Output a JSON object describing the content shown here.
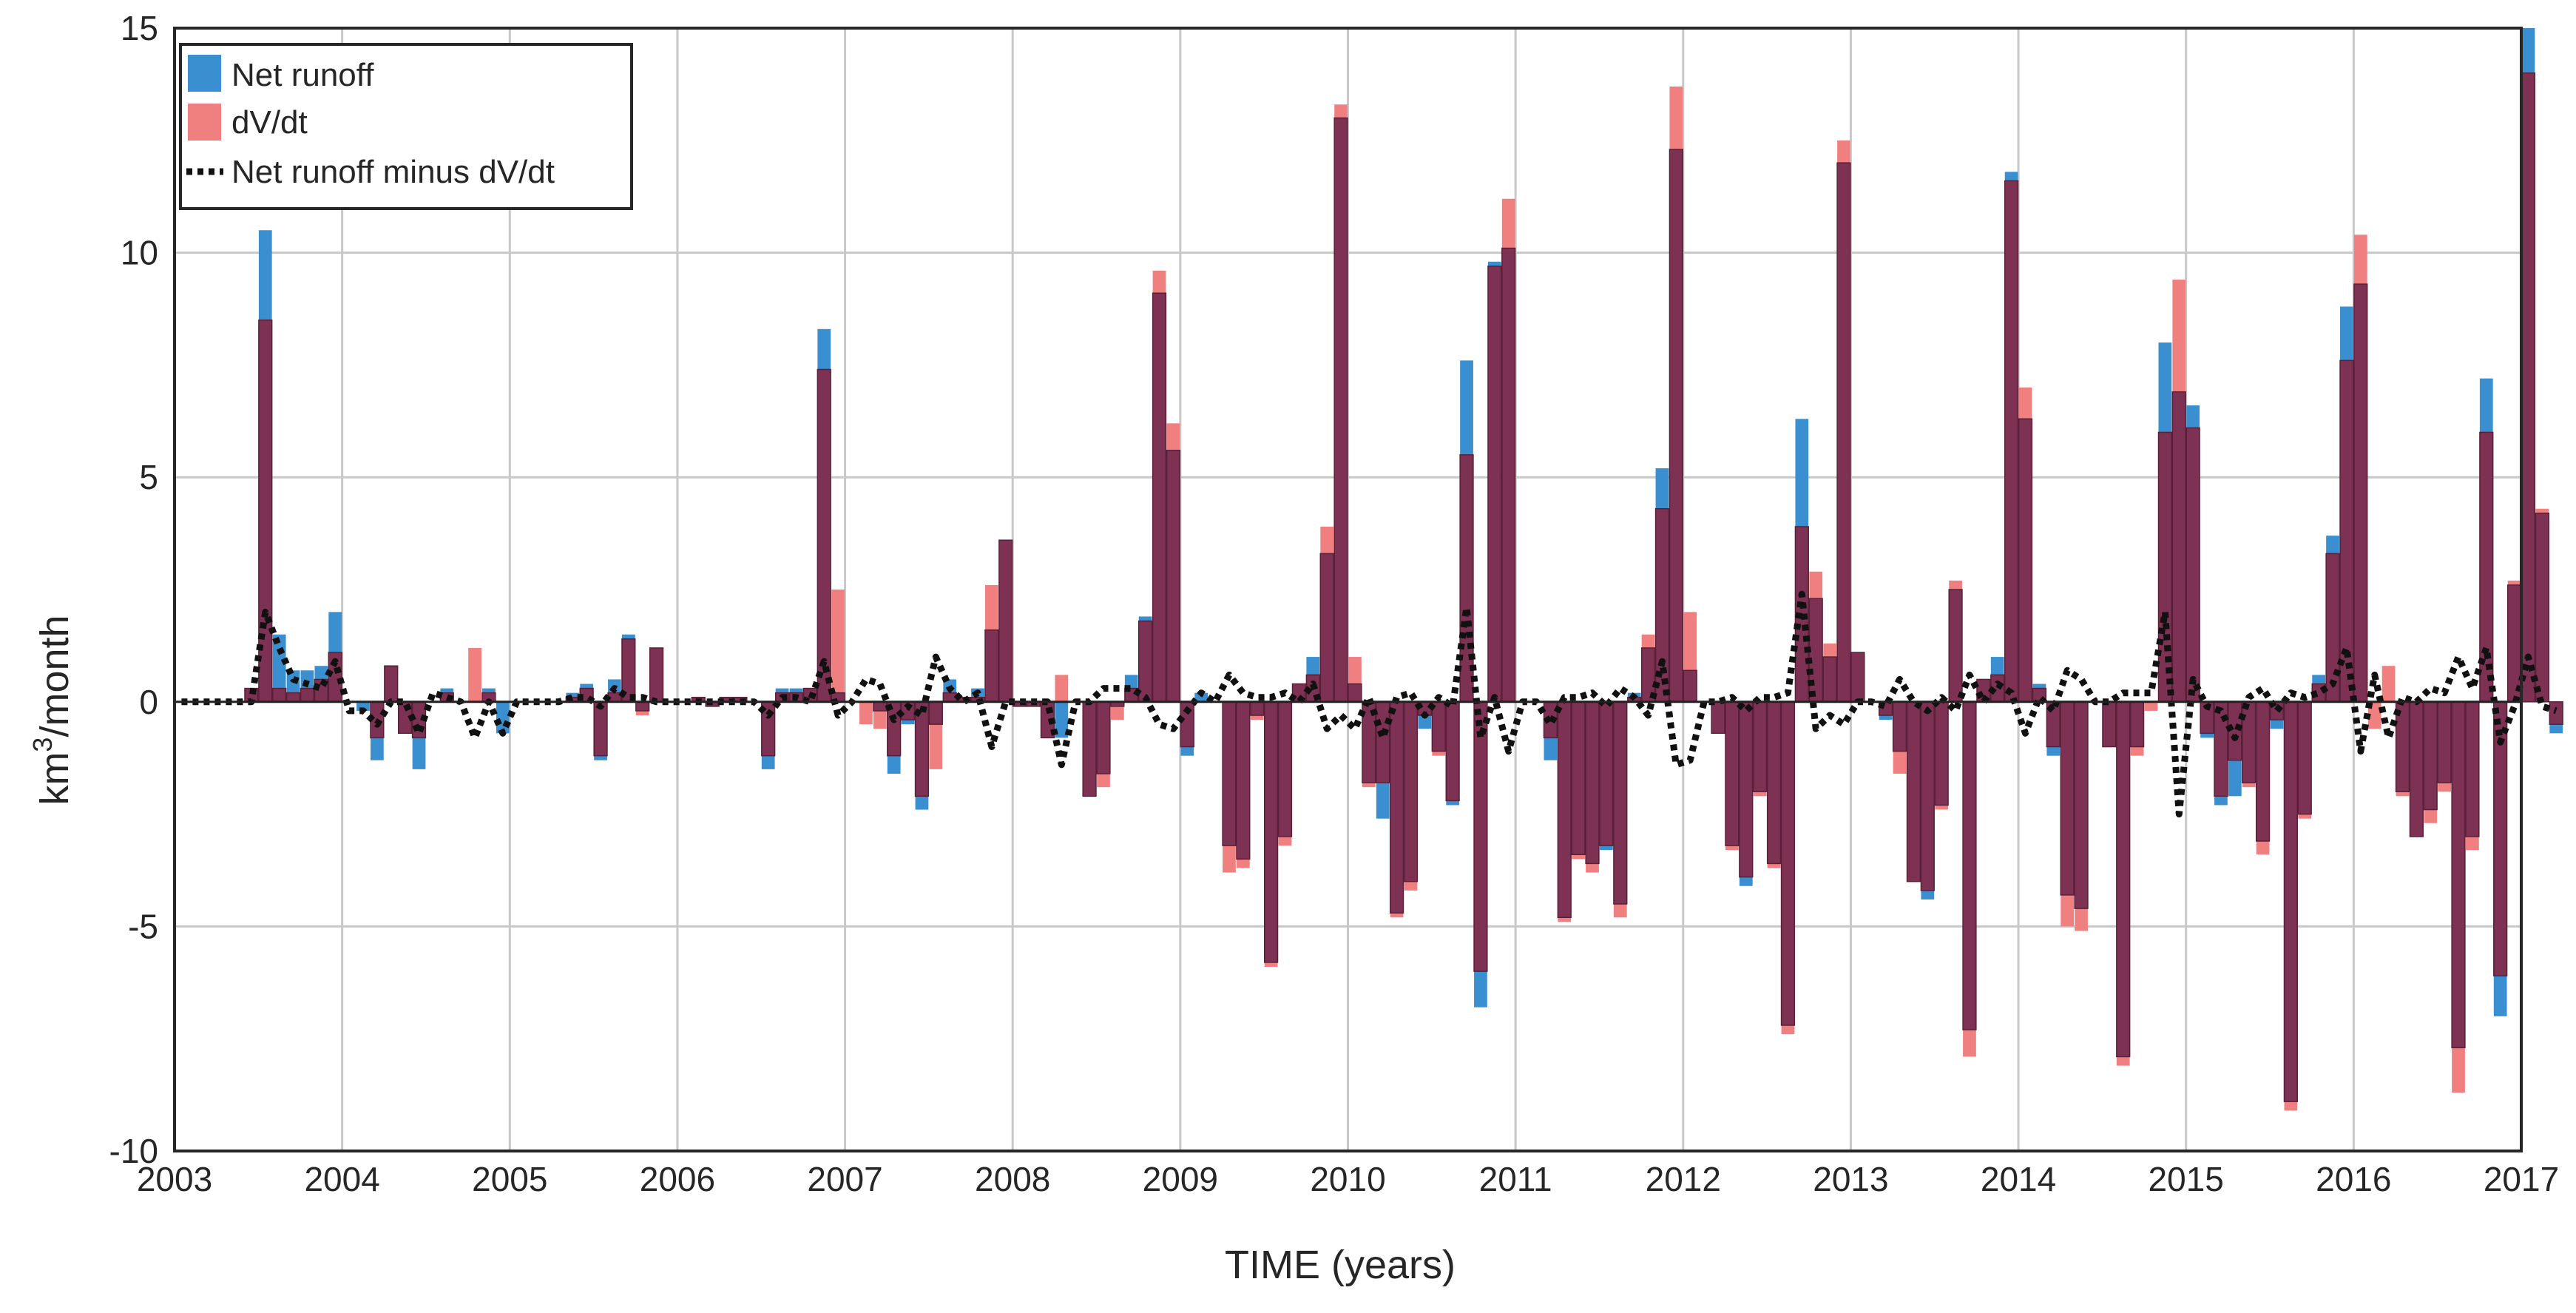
{
  "colors": {
    "net_runoff": "#3a8fd0",
    "dvdt": "#f08080",
    "overlap": "#7d3153",
    "residual_line": "#111111",
    "grid": "#c8c8c8",
    "axes": "#262626"
  },
  "chart_data": {
    "type": "bar",
    "xlabel": "TIME (years)",
    "ylabel_base": "km",
    "ylabel_sup": "3",
    "ylabel_tail": "/month",
    "xlim": [
      2003,
      2017
    ],
    "ylim": [
      -10,
      15
    ],
    "xticks": [
      "2003",
      "2004",
      "2005",
      "2006",
      "2007",
      "2008",
      "2009",
      "2010",
      "2011",
      "2012",
      "2013",
      "2014",
      "2015",
      "2016",
      "2017"
    ],
    "yticks": [
      "-10",
      "-5",
      "0",
      "5",
      "10",
      "15"
    ],
    "grid": true,
    "legend_position": "top-left",
    "legend": [
      "Net runoff",
      "dV/dt",
      "Net runoff minus dV/dt"
    ],
    "start_year": 2003,
    "series": [
      {
        "name": "Net runoff",
        "values": [
          0,
          0,
          0,
          0,
          0,
          0.3,
          10.5,
          1.5,
          0.7,
          0.7,
          0.8,
          2.0,
          0,
          -0.2,
          -1.3,
          0.8,
          -0.7,
          -1.5,
          0,
          0.3,
          0,
          0,
          0.3,
          -0.7,
          0,
          0,
          0,
          0,
          0.2,
          0.4,
          -1.3,
          0.5,
          1.5,
          -0.2,
          1.2,
          0,
          0,
          0.1,
          -0.1,
          0.1,
          0.1,
          0,
          -1.5,
          0.3,
          0.3,
          0.3,
          8.3,
          0.2,
          0,
          0,
          -0.2,
          -1.6,
          -0.5,
          -2.4,
          -0.5,
          0.5,
          0.1,
          0.3,
          1.6,
          3.6,
          -0.1,
          -0.1,
          -0.8,
          -0.8,
          0,
          -2.1,
          -1.6,
          -0.1,
          0.6,
          1.9,
          9.1,
          5.6,
          -1.2,
          0.2,
          0,
          -3.2,
          -3.5,
          -0.3,
          -5.8,
          -3.0,
          0.4,
          1.0,
          3.3,
          13.0,
          0.4,
          -1.8,
          -2.6,
          -4.7,
          -4.0,
          -0.6,
          -1.1,
          -2.3,
          7.6,
          -6.8,
          9.8,
          10.1,
          0,
          0,
          -1.3,
          -4.8,
          -3.4,
          -3.6,
          -3.3,
          -4.5,
          0.2,
          1.2,
          5.2,
          12.3,
          0.7,
          0,
          -0.7,
          -3.2,
          -4.1,
          -2.0,
          -3.6,
          -7.2,
          6.3,
          2.3,
          1.0,
          12.0,
          1.1,
          0,
          -0.4,
          -1.1,
          -4.0,
          -4.4,
          -2.3,
          2.5,
          -7.3,
          0.5,
          1.0,
          11.8,
          6.3,
          0.4,
          -1.2,
          -4.3,
          -4.6,
          0,
          -1.0,
          -7.9,
          -1.0,
          0,
          8.0,
          6.9,
          6.6,
          -0.8,
          -2.3,
          -2.1,
          -1.8,
          -3.1,
          -0.6,
          -8.9,
          -2.5,
          0.6,
          3.7,
          8.8,
          9.3,
          0,
          0,
          -2.0,
          -3.0,
          -2.4,
          -1.8,
          -7.7,
          -3.0,
          7.2,
          -7.0,
          2.6,
          15.0,
          4.2,
          -0.7
        ]
      },
      {
        "name": "dV/dt",
        "values": [
          0,
          0,
          0,
          0,
          0,
          0.3,
          8.5,
          0.3,
          0.2,
          0.3,
          0.5,
          1.1,
          0,
          0,
          -0.8,
          0.8,
          -0.7,
          -0.8,
          0,
          0.2,
          0,
          1.2,
          0.2,
          0,
          0,
          0,
          0,
          0,
          0.1,
          0.3,
          -1.2,
          0.2,
          1.4,
          -0.3,
          1.2,
          0,
          0,
          0.1,
          -0.1,
          0.1,
          0.1,
          0,
          -1.2,
          0.2,
          0.2,
          0.3,
          7.4,
          2.5,
          0,
          -0.5,
          -0.6,
          -1.2,
          -0.4,
          -2.1,
          -1.5,
          0.2,
          0.1,
          0.1,
          2.6,
          3.6,
          -0.1,
          -0.1,
          -0.8,
          0.6,
          0,
          -2.1,
          -1.9,
          -0.4,
          0.3,
          1.8,
          9.6,
          6.2,
          -1.0,
          0,
          0,
          -3.8,
          -3.7,
          -0.4,
          -5.9,
          -3.2,
          0.4,
          0.6,
          3.9,
          13.3,
          1.0,
          -1.9,
          -1.8,
          -4.8,
          -4.2,
          -0.3,
          -1.2,
          -2.2,
          5.5,
          -6.0,
          9.7,
          11.2,
          0,
          0,
          -0.8,
          -4.9,
          -3.5,
          -3.8,
          -3.2,
          -4.8,
          0.1,
          1.5,
          4.3,
          13.7,
          2.0,
          0,
          -0.7,
          -3.3,
          -3.9,
          -2.1,
          -3.7,
          -7.4,
          3.9,
          2.9,
          1.3,
          12.5,
          1.1,
          0,
          -0.3,
          -1.6,
          -4.0,
          -4.2,
          -2.4,
          2.7,
          -7.9,
          0.5,
          0.6,
          11.6,
          7.0,
          0.3,
          -1.0,
          -5.0,
          -5.1,
          0,
          -1.0,
          -8.1,
          -1.2,
          -0.2,
          6.0,
          9.4,
          6.1,
          -0.7,
          -2.1,
          -1.3,
          -1.9,
          -3.4,
          -0.4,
          -9.1,
          -2.6,
          0.4,
          3.3,
          7.6,
          10.4,
          -0.6,
          0.8,
          -2.1,
          -3.0,
          -2.7,
          -2.0,
          -8.7,
          -3.3,
          6.0,
          -6.1,
          2.7,
          14.0,
          4.3,
          -0.5
        ]
      },
      {
        "name": "Net runoff minus dV/dt",
        "values": [
          0,
          0,
          0,
          0,
          0,
          0,
          2.0,
          1.2,
          0.5,
          0.4,
          0.3,
          0.9,
          -0.2,
          -0.2,
          -0.5,
          0,
          0,
          -0.7,
          0.2,
          0.1,
          0,
          -0.8,
          0,
          -0.7,
          0,
          0,
          0,
          0,
          0.1,
          0.1,
          -0.1,
          0.3,
          0.1,
          0.1,
          0,
          0,
          0,
          0,
          0,
          0,
          0,
          0,
          -0.3,
          0.1,
          0.1,
          0,
          0.9,
          -0.3,
          0,
          0.5,
          0.4,
          -0.4,
          -0.1,
          -0.3,
          1.0,
          0.3,
          0,
          0.2,
          -1.0,
          0,
          0,
          0,
          0,
          -1.4,
          0,
          0,
          0.3,
          0.3,
          0.3,
          0.1,
          -0.5,
          -0.6,
          -0.2,
          0.2,
          0,
          0.6,
          0.2,
          0.1,
          0.1,
          0.2,
          0,
          0.4,
          -0.6,
          -0.3,
          -0.6,
          0.1,
          -0.8,
          0.1,
          0.2,
          -0.3,
          0.1,
          -0.1,
          2.1,
          -0.8,
          0.1,
          -1.1,
          0,
          0,
          -0.5,
          0.1,
          0.1,
          0.2,
          -0.1,
          0.3,
          0.1,
          -0.3,
          0.9,
          -1.4,
          -1.3,
          0,
          0,
          0.1,
          -0.2,
          0.1,
          0.1,
          0.2,
          2.4,
          -0.6,
          -0.3,
          -0.5,
          0,
          0,
          -0.1,
          0.5,
          0,
          -0.2,
          0.1,
          -0.2,
          0.6,
          0,
          0.4,
          0.2,
          -0.7,
          0.1,
          -0.2,
          0.7,
          0.5,
          0,
          0,
          0.2,
          0.2,
          0.2,
          2.0,
          -2.5,
          0.5,
          -0.1,
          -0.2,
          -0.8,
          0.1,
          0.3,
          -0.2,
          0.2,
          0.1,
          0.2,
          0.4,
          1.2,
          -1.1,
          0.6,
          -0.8,
          0.1,
          0,
          0.3,
          0.2,
          1.0,
          0.3,
          1.2,
          -0.9,
          -0.1,
          1.0,
          -0.1,
          -0.2
        ]
      }
    ]
  }
}
